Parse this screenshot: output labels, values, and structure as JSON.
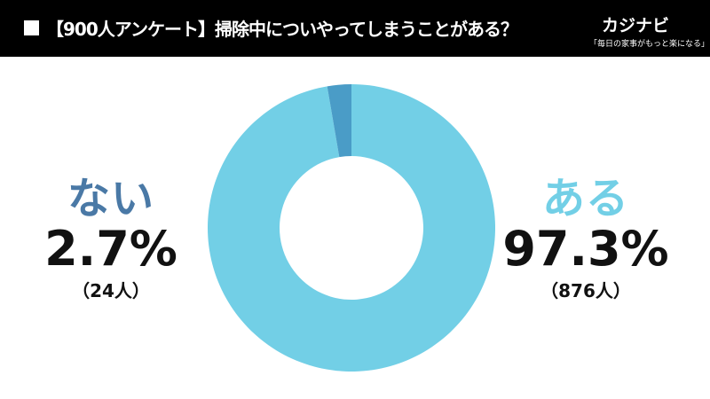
{
  "header": {
    "title": "【900人アンケート】掃除中についやってしまうことがある？",
    "brand": "カジナビ",
    "tagline": "「毎日の家事がもっと楽になる」"
  },
  "chart_data": {
    "type": "pie",
    "title": "【900人アンケート】掃除中についやってしまうことがある？",
    "slices": [
      {
        "label": "ある",
        "percent_text": "97.3%",
        "count_text": "（876人）",
        "value": 97.3,
        "count": 876,
        "color": "#72cfe6",
        "label_color": "#72cfe6"
      },
      {
        "label": "ない",
        "percent_text": "2.7%",
        "count_text": "（24人）",
        "value": 2.7,
        "count": 24,
        "color": "#4a9cc7",
        "label_color": "#4a79a6"
      }
    ],
    "legend": "none"
  }
}
